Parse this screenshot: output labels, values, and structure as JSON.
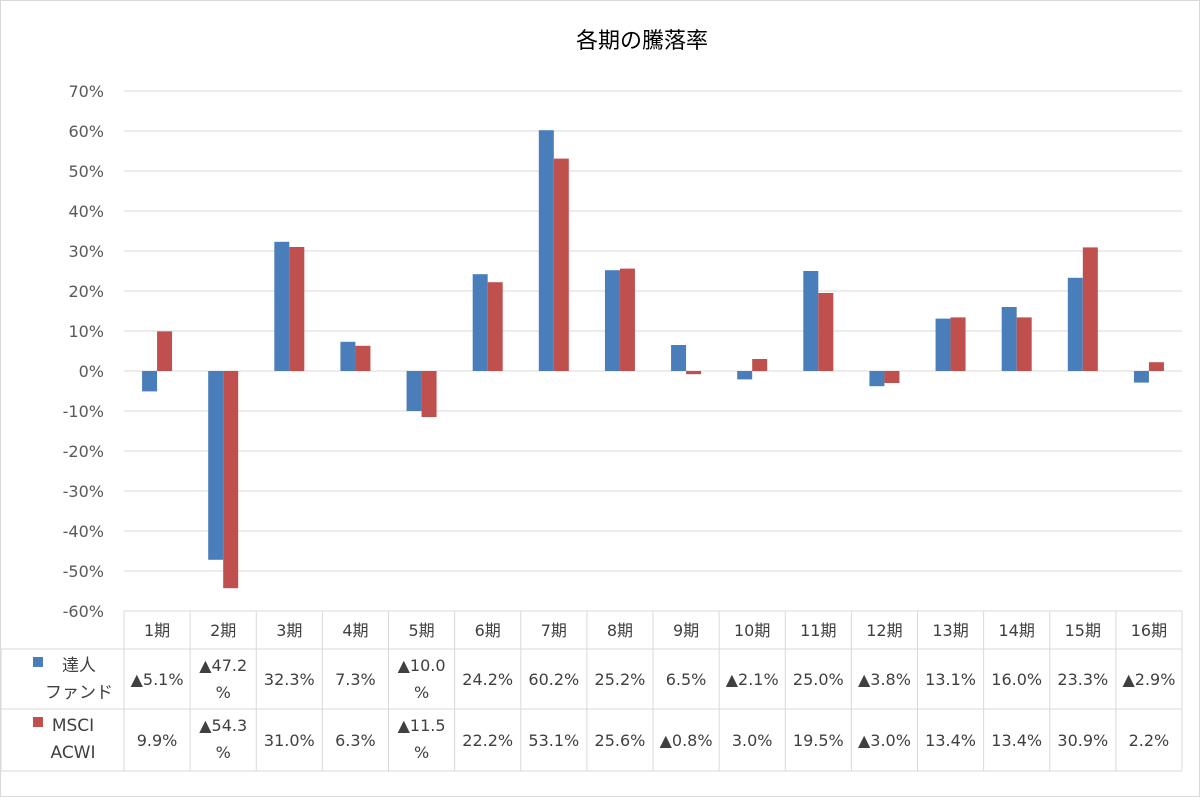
{
  "chart_data": {
    "type": "bar",
    "title": "各期の騰落率",
    "categories": [
      "1期",
      "2期",
      "3期",
      "4期",
      "5期",
      "6期",
      "7期",
      "8期",
      "9期",
      "10期",
      "11期",
      "12期",
      "13期",
      "14期",
      "15期",
      "16期"
    ],
    "ylim": [
      -60,
      70
    ],
    "yticks": [
      70,
      60,
      50,
      40,
      30,
      20,
      10,
      0,
      -10,
      -20,
      -30,
      -40,
      -50,
      -60
    ],
    "ytick_labels": [
      "70%",
      "60%",
      "50%",
      "40%",
      "30%",
      "20%",
      "10%",
      "0%",
      "-10%",
      "-20%",
      "-30%",
      "-40%",
      "-50%",
      "-60%"
    ],
    "grid": true,
    "series": [
      {
        "name": "達人ファンド",
        "name_lines": [
          "達人",
          "ファンド"
        ],
        "color": "#4a7ebb",
        "values": [
          -5.1,
          -47.2,
          32.3,
          7.3,
          -10.0,
          24.2,
          60.2,
          25.2,
          6.5,
          -2.1,
          25.0,
          -3.8,
          13.1,
          16.0,
          23.3,
          -2.9
        ],
        "table_labels": [
          [
            "▲5.1%"
          ],
          [
            "▲47.2",
            "%"
          ],
          [
            "32.3%"
          ],
          [
            "7.3%"
          ],
          [
            "▲10.0",
            "%"
          ],
          [
            "24.2%"
          ],
          [
            "60.2%"
          ],
          [
            "25.2%"
          ],
          [
            "6.5%"
          ],
          [
            "▲2.1%"
          ],
          [
            "25.0%"
          ],
          [
            "▲3.8%"
          ],
          [
            "13.1%"
          ],
          [
            "16.0%"
          ],
          [
            "23.3%"
          ],
          [
            "▲2.9%"
          ]
        ]
      },
      {
        "name": "MSCI ACWI",
        "name_lines": [
          "MSCI",
          "ACWI"
        ],
        "color": "#c0504d",
        "values": [
          9.9,
          -54.3,
          31.0,
          6.3,
          -11.5,
          22.2,
          53.1,
          25.6,
          -0.8,
          3.0,
          19.5,
          -3.0,
          13.4,
          13.4,
          30.9,
          2.2
        ],
        "table_labels": [
          [
            "9.9%"
          ],
          [
            "▲54.3",
            "%"
          ],
          [
            "31.0%"
          ],
          [
            "6.3%"
          ],
          [
            "▲11.5",
            "%"
          ],
          [
            "22.2%"
          ],
          [
            "53.1%"
          ],
          [
            "25.6%"
          ],
          [
            "▲0.8%"
          ],
          [
            "3.0%"
          ],
          [
            "19.5%"
          ],
          [
            "▲3.0%"
          ],
          [
            "13.4%"
          ],
          [
            "13.4%"
          ],
          [
            "30.9%"
          ],
          [
            "2.2%"
          ]
        ]
      }
    ]
  }
}
